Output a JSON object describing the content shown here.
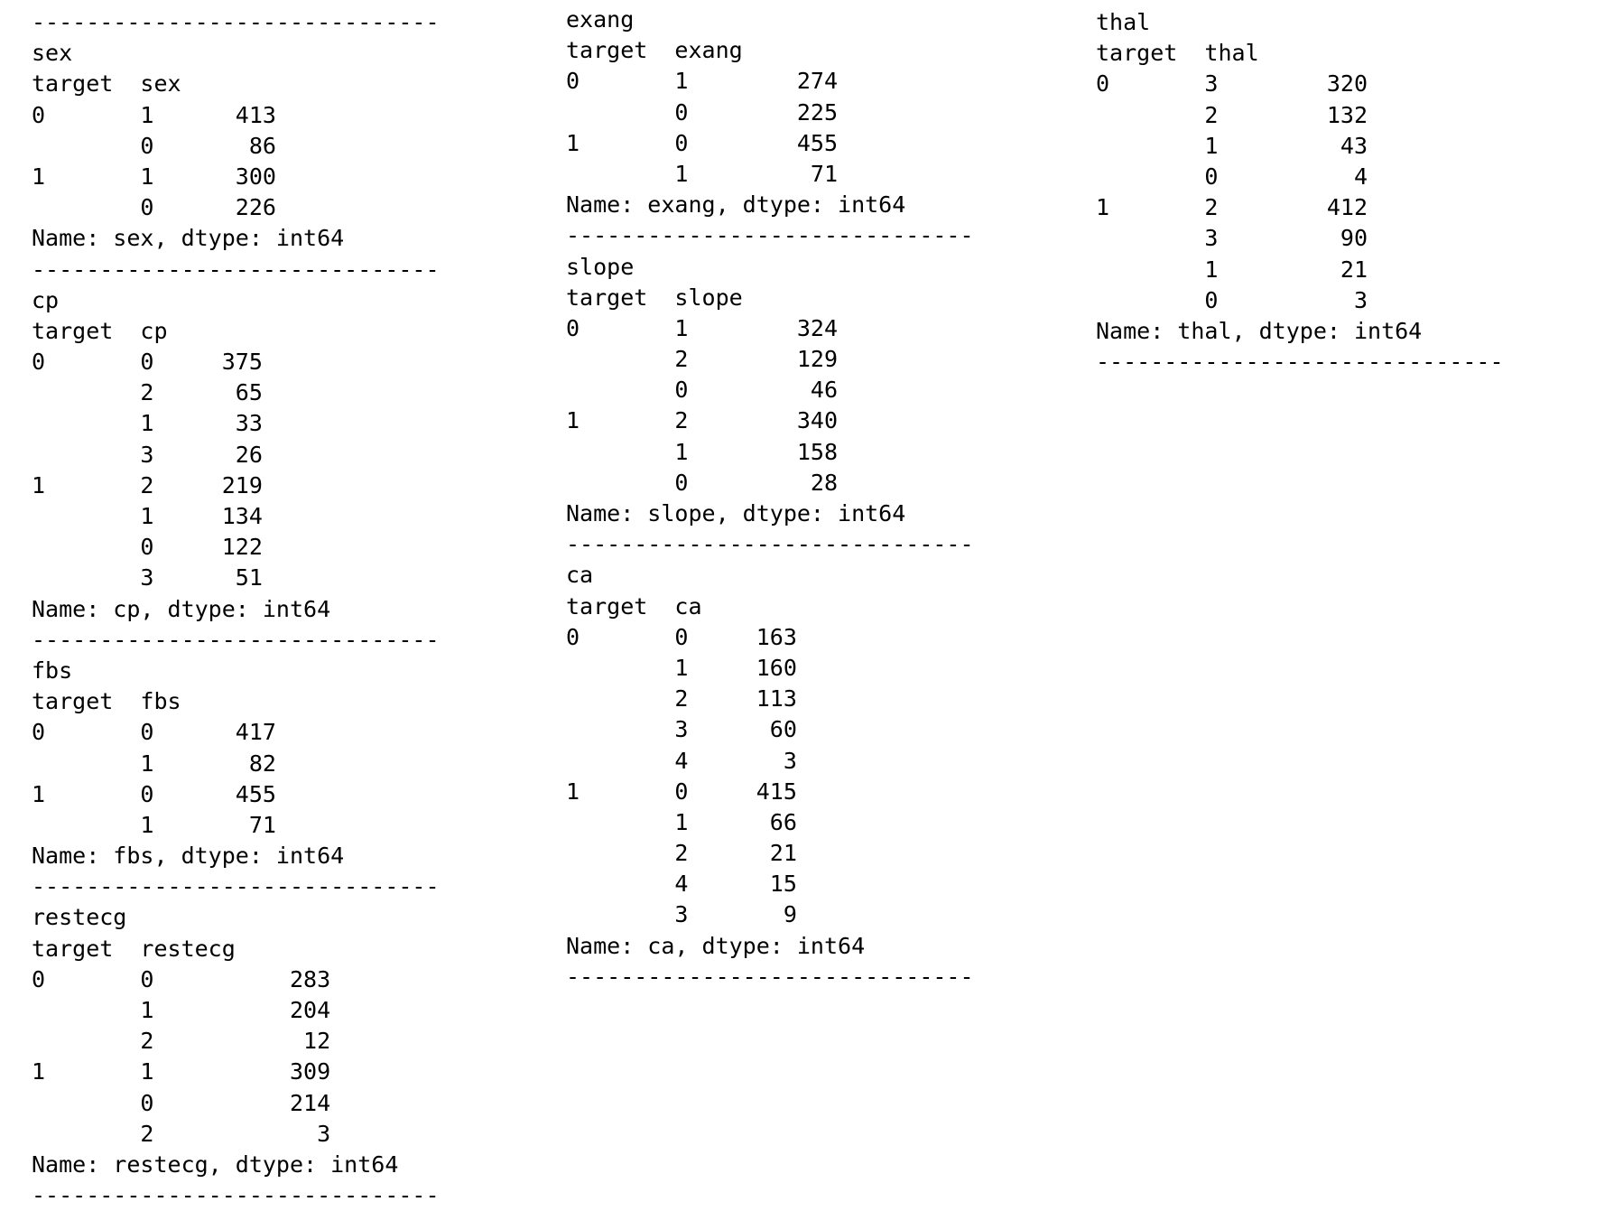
{
  "columns": [
    {
      "lines": [
        "------------------------------",
        "sex",
        "target  sex",
        "0       1      413",
        "        0       86",
        "1       1      300",
        "        0      226",
        "Name: sex, dtype: int64",
        "------------------------------",
        "cp",
        "target  cp",
        "0       0     375",
        "        2      65",
        "        1      33",
        "        3      26",
        "1       2     219",
        "        1     134",
        "        0     122",
        "        3      51",
        "Name: cp, dtype: int64",
        "------------------------------",
        "fbs",
        "target  fbs",
        "0       0      417",
        "        1       82",
        "1       0      455",
        "        1       71",
        "Name: fbs, dtype: int64",
        "------------------------------",
        "restecg",
        "target  restecg",
        "0       0          283",
        "        1          204",
        "        2           12",
        "1       1          309",
        "        0          214",
        "        2            3",
        "Name: restecg, dtype: int64",
        "------------------------------"
      ]
    },
    {
      "lines": [
        "exang",
        "target  exang",
        "0       1        274",
        "        0        225",
        "1       0        455",
        "        1         71",
        "Name: exang, dtype: int64",
        "------------------------------",
        "slope",
        "target  slope",
        "0       1        324",
        "        2        129",
        "        0         46",
        "1       2        340",
        "        1        158",
        "        0         28",
        "Name: slope, dtype: int64",
        "------------------------------",
        "ca",
        "target  ca",
        "0       0     163",
        "        1     160",
        "        2     113",
        "        3      60",
        "        4       3",
        "1       0     415",
        "        1      66",
        "        2      21",
        "        4      15",
        "        3       9",
        "Name: ca, dtype: int64",
        "------------------------------"
      ]
    },
    {
      "lines": [
        "thal",
        "target  thal",
        "0       3        320",
        "        2        132",
        "        1         43",
        "        0          4",
        "1       2        412",
        "        3         90",
        "        1         21",
        "        0          3",
        "Name: thal, dtype: int64",
        "------------------------------"
      ]
    }
  ]
}
